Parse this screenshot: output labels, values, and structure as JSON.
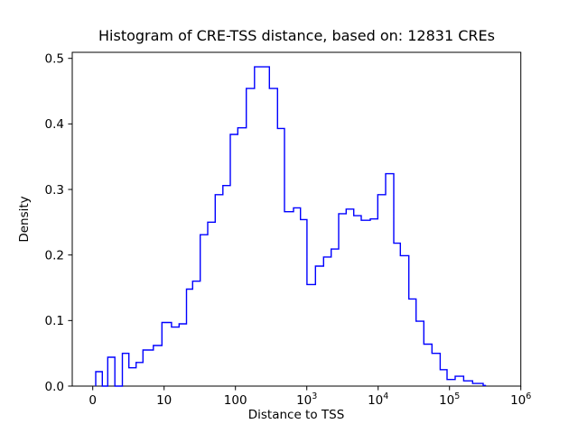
{
  "figure": {
    "title": "Histogram of CRE-TSS distance, based on: 12831 CREs",
    "background": "#ffffff",
    "text_color": "#000000"
  },
  "axes": {
    "xlabel": "Distance to TSS",
    "ylabel": "Density",
    "x_scale": "symlog",
    "x_tick_labels": [
      "0",
      "10",
      "100",
      "10^3",
      "10^4",
      "10^5",
      "10^6"
    ],
    "y_tick_labels": [
      "0.0",
      "0.1",
      "0.2",
      "0.3",
      "0.4",
      "0.5"
    ]
  },
  "chart_data": {
    "type": "bar",
    "histtype": "step",
    "title": "Histogram of CRE-TSS distance, based on: 12831 CREs",
    "xlabel": "Distance to TSS",
    "ylabel": "Density",
    "n_samples": 12831,
    "line_color": "#0000ff",
    "x_scale": "symlog",
    "linthresh": 10,
    "xlim": [
      -2.9,
      1000000
    ],
    "ylim": [
      0,
      0.509
    ],
    "grid": false,
    "legend": "none",
    "x_ticks": [
      {
        "value": 0,
        "label": "0"
      },
      {
        "value": 10,
        "label": "10"
      },
      {
        "value": 100,
        "label": "100"
      },
      {
        "value": 1000,
        "label": "10^3"
      },
      {
        "value": 10000,
        "label": "10^4"
      },
      {
        "value": 100000,
        "label": "10^5"
      },
      {
        "value": 1000000,
        "label": "10^6"
      }
    ],
    "y_ticks": [
      {
        "value": 0.0,
        "label": "0.0"
      },
      {
        "value": 0.1,
        "label": "0.1"
      },
      {
        "value": 0.2,
        "label": "0.2"
      },
      {
        "value": 0.3,
        "label": "0.3"
      },
      {
        "value": 0.4,
        "label": "0.4"
      },
      {
        "value": 0.5,
        "label": "0.5"
      }
    ],
    "bin_edges": [
      0.42,
      1.34,
      2.1,
      3.1,
      4.15,
      5.06,
      6.08,
      7.04,
      8.5,
      9.7,
      12.7,
      16.2,
      20.6,
      25.1,
      32.1,
      40.9,
      52,
      66.6,
      84.7,
      108,
      142,
      185,
      235,
      299,
      389,
      487,
      652,
      815,
      1007,
      1322,
      1718,
      2194,
      2796,
      3562,
      4547,
      5794,
      7757,
      9885,
      12735,
      16560,
      20470,
      26920,
      34020,
      43730,
      56890,
      73960,
      92470,
      120200,
      157800,
      210900,
      296500,
      319000
    ],
    "densities": [
      0.022,
      0,
      0.044,
      0,
      0.05,
      0.028,
      0.036,
      0.055,
      0.062,
      0.097,
      0.09,
      0.095,
      0.148,
      0.16,
      0.231,
      0.25,
      0.292,
      0.306,
      0.384,
      0.394,
      0.454,
      0.487,
      0.487,
      0.454,
      0.393,
      0.266,
      0.272,
      0.254,
      0.155,
      0.183,
      0.197,
      0.209,
      0.263,
      0.27,
      0.26,
      0.253,
      0.255,
      0.292,
      0.324,
      0.218,
      0.199,
      0.133,
      0.099,
      0.064,
      0.05,
      0.025,
      0.01,
      0.015,
      0.008,
      0.004,
      0.001
    ]
  }
}
